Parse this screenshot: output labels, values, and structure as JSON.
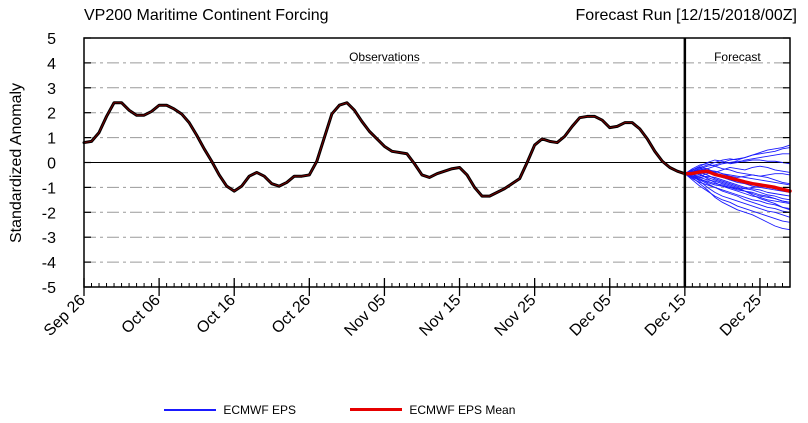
{
  "chart_data": {
    "type": "line",
    "title_left": "VP200 Maritime Continent Forcing",
    "title_right": "Forecast Run [12/15/2018/00Z]",
    "ylabel": "Standardized Anomaly",
    "xlabel": "",
    "ylim": [
      -5,
      5
    ],
    "yticks": [
      5,
      4,
      3,
      2,
      1,
      0,
      -1,
      -2,
      -3,
      -4,
      -5
    ],
    "xlim": [
      "2018-09-26",
      "2018-12-29"
    ],
    "xtick_labels": [
      "Sep 26",
      "Oct 06",
      "Oct 16",
      "Oct 26",
      "Nov 05",
      "Nov 15",
      "Nov 25",
      "Dec 05",
      "Dec 15",
      "Dec 25"
    ],
    "xtick_dates": [
      "2018-09-26",
      "2018-10-06",
      "2018-10-16",
      "2018-10-26",
      "2018-11-05",
      "2018-11-15",
      "2018-11-25",
      "2018-12-05",
      "2018-12-15",
      "2018-12-25"
    ],
    "forecast_start": "2018-12-15",
    "regions": [
      {
        "label": "Observations"
      },
      {
        "label": "Forecast"
      }
    ],
    "grid": "dashed horizontal",
    "legend_placement": "bottom",
    "series": [
      {
        "name": "ECMWF EPS",
        "role": "ensemble",
        "color": "#1a1aff",
        "x_start": "2018-12-15",
        "members": [
          [
            -0.45,
            -0.3,
            -0.2,
            -0.1,
            0.0,
            0.1,
            0.15,
            0.1,
            0.2,
            0.3,
            0.4,
            0.5,
            0.55,
            0.6,
            0.7
          ],
          [
            -0.45,
            -0.35,
            -0.25,
            -0.15,
            -0.1,
            0.0,
            0.1,
            0.15,
            0.2,
            0.3,
            0.35,
            0.4,
            0.45,
            0.55,
            0.6
          ],
          [
            -0.45,
            -0.3,
            -0.15,
            0.0,
            0.1,
            0.05,
            -0.05,
            0.0,
            0.1,
            0.15,
            0.2,
            0.25,
            0.3,
            0.35,
            0.35
          ],
          [
            -0.45,
            -0.4,
            -0.3,
            -0.25,
            -0.15,
            -0.05,
            0.0,
            0.05,
            0.05,
            0.1,
            0.1,
            0.05,
            0.05,
            0.0,
            -0.05
          ],
          [
            -0.45,
            -0.35,
            -0.3,
            -0.35,
            -0.4,
            -0.3,
            -0.2,
            -0.25,
            -0.3,
            -0.2,
            -0.15,
            -0.2,
            -0.3,
            -0.35,
            -0.4
          ],
          [
            -0.45,
            -0.4,
            -0.35,
            -0.3,
            -0.35,
            -0.45,
            -0.5,
            -0.55,
            -0.6,
            -0.65,
            -0.7,
            -0.75,
            -0.8,
            -0.85,
            -0.9
          ],
          [
            -0.45,
            -0.5,
            -0.45,
            -0.4,
            -0.5,
            -0.6,
            -0.65,
            -0.7,
            -0.8,
            -0.85,
            -0.95,
            -1.0,
            -1.05,
            -1.1,
            -1.15
          ],
          [
            -0.45,
            -0.55,
            -0.6,
            -0.55,
            -0.6,
            -0.7,
            -0.8,
            -0.9,
            -1.0,
            -1.05,
            -1.1,
            -1.2,
            -1.25,
            -1.3,
            -1.35
          ],
          [
            -0.45,
            -0.6,
            -0.7,
            -0.75,
            -0.85,
            -0.9,
            -1.0,
            -1.1,
            -1.15,
            -1.25,
            -1.35,
            -1.4,
            -1.45,
            -1.55,
            -1.6
          ],
          [
            -0.45,
            -0.65,
            -0.8,
            -0.9,
            -1.0,
            -1.1,
            -1.2,
            -1.3,
            -1.4,
            -1.5,
            -1.55,
            -1.65,
            -1.7,
            -1.8,
            -1.85
          ],
          [
            -0.45,
            -0.55,
            -0.75,
            -1.0,
            -1.2,
            -1.35,
            -1.45,
            -1.55,
            -1.65,
            -1.75,
            -1.85,
            -1.95,
            -2.0,
            -2.1,
            -2.2
          ],
          [
            -0.45,
            -0.7,
            -0.95,
            -1.15,
            -1.35,
            -1.5,
            -1.6,
            -1.75,
            -1.85,
            -1.95,
            -2.05,
            -2.15,
            -2.25,
            -2.35,
            -2.4
          ],
          [
            -0.45,
            -0.6,
            -0.85,
            -1.1,
            -1.4,
            -1.6,
            -1.75,
            -1.9,
            -2.0,
            -2.1,
            -2.25,
            -2.4,
            -2.55,
            -2.65,
            -2.7
          ],
          [
            -0.45,
            -0.35,
            -0.45,
            -0.65,
            -0.8,
            -0.95,
            -1.05,
            -1.15,
            -1.25,
            -1.35,
            -1.4,
            -1.5,
            -1.55,
            -1.6,
            -1.65
          ],
          [
            -0.45,
            -0.3,
            -0.2,
            -0.25,
            -0.4,
            -0.55,
            -0.7,
            -0.8,
            -0.85,
            -0.95,
            -1.0,
            -1.05,
            -1.1,
            -1.15,
            -1.2
          ],
          [
            -0.45,
            -0.5,
            -0.55,
            -0.45,
            -0.35,
            -0.45,
            -0.55,
            -0.6,
            -0.55,
            -0.5,
            -0.55,
            -0.6,
            -0.7,
            -0.8,
            -0.85
          ],
          [
            -0.45,
            -0.45,
            -0.4,
            -0.5,
            -0.65,
            -0.75,
            -0.85,
            -0.95,
            -1.05,
            -1.1,
            -1.2,
            -1.3,
            -1.35,
            -1.45,
            -1.5
          ],
          [
            -0.45,
            -0.25,
            -0.1,
            -0.05,
            -0.15,
            -0.25,
            -0.3,
            -0.4,
            -0.45,
            -0.5,
            -0.55,
            -0.5,
            -0.45,
            -0.45,
            -0.5
          ],
          [
            -0.45,
            -0.55,
            -0.65,
            -0.8,
            -0.9,
            -0.95,
            -1.0,
            -1.05,
            -1.05,
            -1.0,
            -0.95,
            -0.95,
            -1.0,
            -1.05,
            -1.1
          ],
          [
            -0.45,
            -0.5,
            -0.6,
            -0.7,
            -0.75,
            -0.85,
            -0.95,
            -1.05,
            -1.15,
            -1.2,
            -1.3,
            -1.35,
            -1.45,
            -1.55,
            -1.6
          ],
          [
            -0.45,
            -0.4,
            -0.5,
            -0.6,
            -0.7,
            -0.8,
            -0.9,
            -1.0,
            -1.15,
            -1.3,
            -1.45,
            -1.55,
            -1.65,
            -1.8,
            -1.9
          ],
          [
            -0.45,
            -0.35,
            -0.35,
            -0.4,
            -0.45,
            -0.55,
            -0.6,
            -0.7,
            -0.75,
            -0.85,
            -0.9,
            -0.95,
            -1.0,
            -1.05,
            -1.1
          ],
          [
            -0.45,
            -0.55,
            -0.7,
            -0.85,
            -1.0,
            -1.15,
            -1.25,
            -1.35,
            -1.5,
            -1.6,
            -1.7,
            -1.8,
            -1.85,
            -1.95,
            -2.0
          ],
          [
            -0.45,
            -0.35,
            -0.25,
            -0.3,
            -0.45,
            -0.6,
            -0.7,
            -0.75,
            -0.8,
            -0.85,
            -0.9,
            -0.95,
            -1.05,
            -1.1,
            -1.15
          ]
        ]
      },
      {
        "name": "ECMWF EPS Mean",
        "role": "mean",
        "color": "#e60000",
        "x_start": "2018-12-15",
        "values": [
          -0.45,
          -0.44,
          -0.38,
          -0.35,
          -0.48,
          -0.55,
          -0.62,
          -0.7,
          -0.78,
          -0.85,
          -0.9,
          -0.95,
          -1.0,
          -1.08,
          -1.15
        ]
      },
      {
        "name": "Observations",
        "role": "observed",
        "color": "#000000",
        "x_start": "2018-09-26",
        "values": [
          0.8,
          0.85,
          1.2,
          1.85,
          2.4,
          2.4,
          2.1,
          1.9,
          1.9,
          2.05,
          2.3,
          2.3,
          2.15,
          1.95,
          1.6,
          1.1,
          0.55,
          0.05,
          -0.5,
          -0.95,
          -1.15,
          -0.95,
          -0.55,
          -0.4,
          -0.55,
          -0.85,
          -0.95,
          -0.8,
          -0.55,
          -0.55,
          -0.5,
          0.05,
          1.0,
          1.95,
          2.3,
          2.4,
          2.1,
          1.65,
          1.25,
          0.95,
          0.65,
          0.45,
          0.4,
          0.35,
          -0.05,
          -0.5,
          -0.6,
          -0.45,
          -0.35,
          -0.25,
          -0.2,
          -0.5,
          -1.0,
          -1.35,
          -1.35,
          -1.2,
          -1.05,
          -0.85,
          -0.65,
          0.0,
          0.7,
          0.95,
          0.85,
          0.8,
          1.05,
          1.45,
          1.8,
          1.85,
          1.85,
          1.7,
          1.4,
          1.45,
          1.6,
          1.6,
          1.35,
          0.95,
          0.45,
          0.05,
          -0.2,
          -0.35,
          -0.45
        ]
      }
    ]
  }
}
